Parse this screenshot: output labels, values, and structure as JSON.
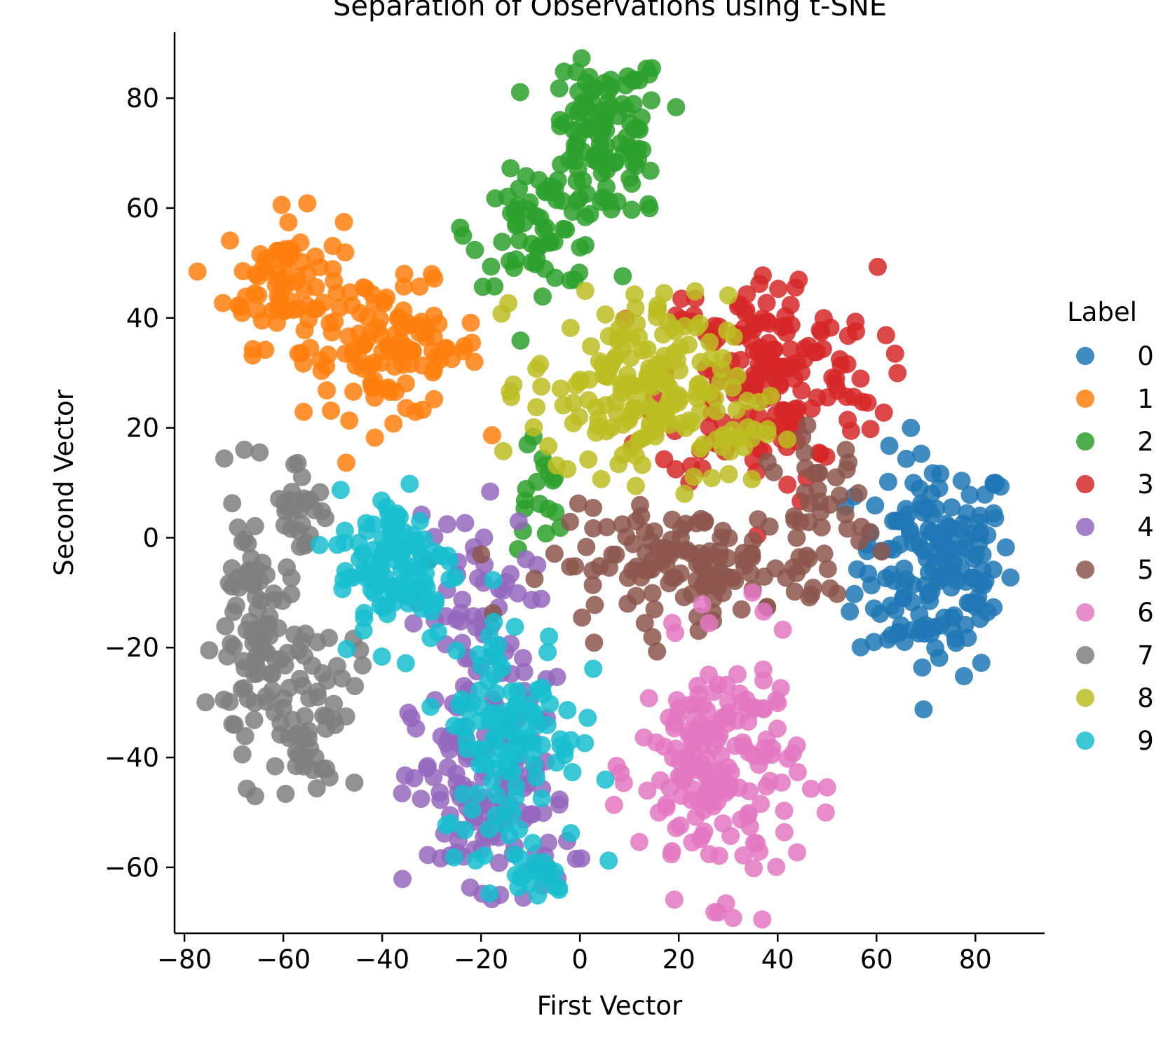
{
  "chart_data": {
    "type": "scatter",
    "title": "Separation of Observations using t-SNE",
    "xlabel": "First Vector",
    "ylabel": "Second Vector",
    "xlim": [
      -82,
      94
    ],
    "ylim": [
      -72,
      92
    ],
    "xticks": [
      -80,
      -60,
      -40,
      -20,
      0,
      20,
      40,
      60,
      80
    ],
    "yticks": [
      -60,
      -40,
      -20,
      0,
      20,
      40,
      60,
      80
    ],
    "xtick_labels": [
      "−80",
      "−60",
      "−40",
      "−20",
      "0",
      "20",
      "40",
      "60",
      "80"
    ],
    "ytick_labels": [
      "−60",
      "−40",
      "−20",
      "0",
      "20",
      "40",
      "60",
      "80"
    ],
    "legend": {
      "title": "Label",
      "placement": "right"
    },
    "grid": false,
    "series": [
      {
        "name": "0",
        "color": "#1f77b4",
        "clusters": [
          {
            "cx": 72,
            "cy": -5,
            "sx": 8,
            "sy": 10,
            "n": 170
          }
        ]
      },
      {
        "name": "1",
        "color": "#ff7f0e",
        "clusters": [
          {
            "cx": -60,
            "cy": 47,
            "sx": 6,
            "sy": 6,
            "n": 80
          },
          {
            "cx": -38,
            "cy": 34,
            "sx": 9,
            "sy": 6,
            "n": 110
          }
        ]
      },
      {
        "name": "2",
        "color": "#2ca02c",
        "clusters": [
          {
            "cx": 5,
            "cy": 73,
            "sx": 6,
            "sy": 8,
            "n": 120
          },
          {
            "cx": -8,
            "cy": 56,
            "sx": 7,
            "sy": 5,
            "n": 60
          },
          {
            "cx": -9,
            "cy": 8,
            "sx": 3,
            "sy": 6,
            "n": 18
          }
        ]
      },
      {
        "name": "3",
        "color": "#d62728",
        "clusters": [
          {
            "cx": 38,
            "cy": 29,
            "sx": 11,
            "sy": 10,
            "n": 190
          }
        ]
      },
      {
        "name": "4",
        "color": "#9467bd",
        "clusters": [
          {
            "cx": -22,
            "cy": -15,
            "sx": 6,
            "sy": 10,
            "n": 60
          },
          {
            "cx": -18,
            "cy": -48,
            "sx": 8,
            "sy": 11,
            "n": 140
          }
        ]
      },
      {
        "name": "5",
        "color": "#8c564b",
        "clusters": [
          {
            "cx": 22,
            "cy": -5,
            "sx": 14,
            "sy": 5,
            "n": 130
          },
          {
            "cx": 48,
            "cy": 5,
            "sx": 5,
            "sy": 7,
            "n": 40
          }
        ]
      },
      {
        "name": "6",
        "color": "#e377c2",
        "clusters": [
          {
            "cx": 28,
            "cy": -42,
            "sx": 8,
            "sy": 11,
            "n": 180
          }
        ]
      },
      {
        "name": "7",
        "color": "#7f7f7f",
        "clusters": [
          {
            "cx": -66,
            "cy": -18,
            "sx": 4,
            "sy": 13,
            "n": 90
          },
          {
            "cx": -55,
            "cy": -30,
            "sx": 5,
            "sy": 8,
            "n": 60
          },
          {
            "cx": -56,
            "cy": 6,
            "sx": 3,
            "sy": 5,
            "n": 25
          }
        ]
      },
      {
        "name": "8",
        "color": "#bcbd22",
        "clusters": [
          {
            "cx": 10,
            "cy": 28,
            "sx": 10,
            "sy": 8,
            "n": 150
          },
          {
            "cx": 24,
            "cy": 20,
            "sx": 8,
            "sy": 5,
            "n": 40
          }
        ]
      },
      {
        "name": "9",
        "color": "#17becf",
        "clusters": [
          {
            "cx": -37,
            "cy": -5,
            "sx": 6,
            "sy": 7,
            "n": 110
          },
          {
            "cx": -14,
            "cy": -35,
            "sx": 7,
            "sy": 11,
            "n": 120
          },
          {
            "cx": -9,
            "cy": -62,
            "sx": 3,
            "sy": 2,
            "n": 20
          }
        ]
      }
    ]
  }
}
